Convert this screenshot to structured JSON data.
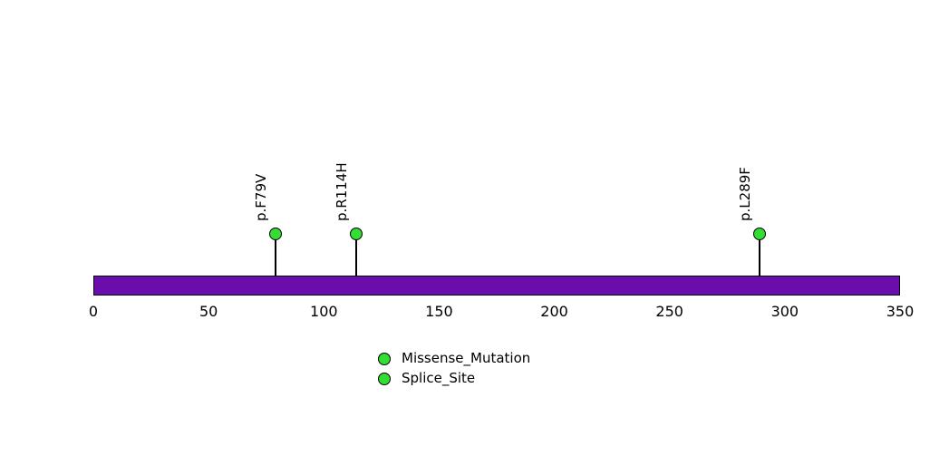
{
  "chart_data": {
    "type": "lollipop",
    "title": "",
    "xlabel": "",
    "ylabel": "",
    "xlim": [
      0,
      350
    ],
    "axis_ticks": [
      0,
      50,
      100,
      150,
      200,
      250,
      300,
      350
    ],
    "grid": false,
    "legend_position": "bottom-center",
    "protein_bar": {
      "start": 0,
      "end": 350,
      "color": "#6A0DAD",
      "border_color": "#000000"
    },
    "mutations": [
      {
        "label": "p.F79V",
        "position": 79,
        "color": "#33DD33"
      },
      {
        "label": "p.R114H",
        "position": 114,
        "color": "#33DD33"
      },
      {
        "label": "p.L289F",
        "position": 289,
        "color": "#33DD33"
      }
    ],
    "legend": [
      {
        "label": "Missense_Mutation",
        "color": "#33DD33"
      },
      {
        "label": "Splice_Site",
        "color": "#33DD33"
      }
    ]
  }
}
